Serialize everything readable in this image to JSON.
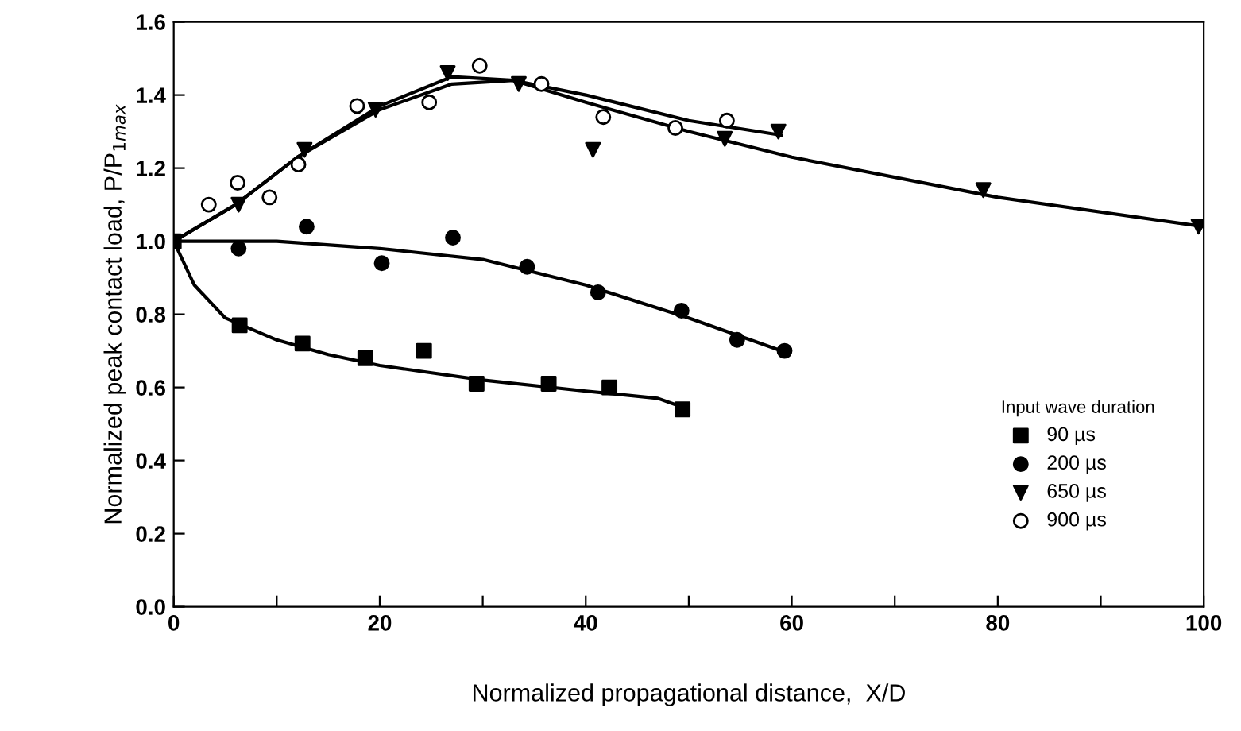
{
  "chart_data": {
    "type": "scatter",
    "xlabel": "Normalized propagational distance,  X/D",
    "ylabel": "Normalized peak contact load, P/P$_{1max}$",
    "legend_title": "Input wave duration",
    "legend": "lower right",
    "grid": false,
    "xlim": [
      0,
      100
    ],
    "ylim": [
      0,
      1.6
    ],
    "xticks": [
      0,
      {
        "value": 10,
        "label": null
      },
      20,
      {
        "value": 30,
        "label": null
      },
      40,
      {
        "value": 50,
        "label": null
      },
      60,
      {
        "value": 70,
        "label": null
      },
      80,
      {
        "value": 90,
        "label": null
      },
      100
    ],
    "yticks": [
      {
        "value": 0,
        "label": "0.0"
      },
      0.2,
      0.4,
      0.6,
      0.8,
      {
        "value": 1.0,
        "label": "1.0"
      },
      1.2,
      1.4,
      1.6
    ],
    "series": [
      {
        "name": "90 µs",
        "marker": "square",
        "color": "#000000",
        "x": [
          0,
          6.4,
          12.5,
          18.6,
          24.3,
          29.4,
          36.4,
          42.3,
          49.4
        ],
        "values": [
          1.0,
          0.77,
          0.72,
          0.68,
          0.7,
          0.61,
          0.61,
          0.6,
          0.54
        ]
      },
      {
        "name": "200 µs",
        "marker": "circle",
        "color": "#000000",
        "x": [
          6.3,
          12.9,
          20.2,
          27.1,
          34.3,
          41.2,
          49.3,
          54.7,
          59.3
        ],
        "values": [
          0.98,
          1.04,
          0.94,
          1.01,
          0.93,
          0.86,
          0.81,
          0.73,
          0.7
        ]
      },
      {
        "name": "650 µs",
        "marker": "triangle",
        "color": "#000000",
        "x": [
          6.3,
          12.7,
          19.6,
          26.6,
          33.5,
          40.7,
          53.5,
          58.7,
          78.6,
          99.5
        ],
        "values": [
          1.1,
          1.25,
          1.36,
          1.46,
          1.43,
          1.25,
          1.28,
          1.3,
          1.14,
          1.04
        ]
      },
      {
        "name": "900 µs",
        "marker": "circle",
        "color": "#ffffff",
        "x": [
          3.4,
          6.2,
          9.3,
          12.1,
          17.8,
          24.8,
          29.7,
          35.7,
          41.7,
          48.7,
          53.7
        ],
        "values": [
          1.1,
          1.16,
          1.12,
          1.21,
          1.37,
          1.38,
          1.48,
          1.43,
          1.34,
          1.31,
          1.33
        ]
      },
      {
        "type": "line",
        "marker": "none",
        "color": "#000000",
        "x": [
          0,
          2,
          5,
          10,
          15,
          20,
          30,
          40,
          47,
          49
        ],
        "values": [
          1.0,
          0.88,
          0.79,
          0.73,
          0.69,
          0.66,
          0.62,
          0.59,
          0.57,
          0.55
        ]
      },
      {
        "type": "line",
        "marker": "none",
        "color": "#000000",
        "x": [
          0,
          10,
          20,
          30,
          40,
          50,
          59
        ],
        "values": [
          1.0,
          1.0,
          0.98,
          0.95,
          0.88,
          0.79,
          0.7
        ]
      },
      {
        "type": "line",
        "marker": "none",
        "color": "#000000",
        "x": [
          0,
          6,
          12,
          20,
          27,
          33,
          40,
          50,
          60,
          80,
          100
        ],
        "values": [
          1.0,
          1.1,
          1.23,
          1.37,
          1.45,
          1.44,
          1.38,
          1.3,
          1.23,
          1.12,
          1.04
        ]
      },
      {
        "type": "line",
        "marker": "none",
        "color": "#000000",
        "x": [
          0,
          6,
          12,
          20,
          27,
          33,
          40,
          50,
          59
        ],
        "values": [
          1.0,
          1.1,
          1.23,
          1.36,
          1.43,
          1.44,
          1.4,
          1.33,
          1.29
        ]
      }
    ]
  }
}
